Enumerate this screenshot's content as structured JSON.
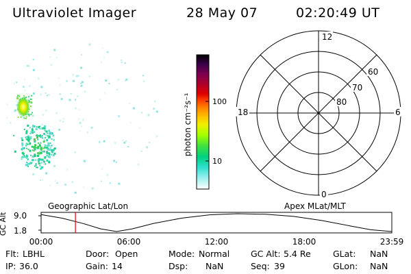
{
  "header": {
    "instrument": "Ultraviolet Imager",
    "date": "28 May 07",
    "time": "02:20:49 UT"
  },
  "colorbar": {
    "unit_label": "photon cm⁻²s⁻¹",
    "ticks": [
      "100",
      "10"
    ],
    "scale": "log",
    "colors": [
      "#000000",
      "#3a0048",
      "#7a0050",
      "#b0002a",
      "#e00000",
      "#ff4000",
      "#ff8a00",
      "#ffc000",
      "#f0f000",
      "#a0ff00",
      "#40e040",
      "#00d080",
      "#30e0d0",
      "#a0f0f0",
      "#ffffff"
    ]
  },
  "polar_grid": {
    "mlt_labels": [
      "12",
      "18",
      "6",
      "0"
    ],
    "lat_labels": [
      "60",
      "70",
      "80"
    ]
  },
  "timeline": {
    "left_title": "Geographic Lat/Lon",
    "right_title": "Apex MLat/MLT",
    "axis_label": "GC Alt",
    "y_ticks": [
      "9.0",
      "1.8"
    ],
    "x_ticks": [
      "00:00",
      "06:00",
      "12:00",
      "18:00",
      "23:59"
    ],
    "marker_time_hours": 2.35,
    "marker_color": "#e00000"
  },
  "status": {
    "row1": [
      {
        "label": "Flt:",
        "value": "LBHL"
      },
      {
        "label": "Door:",
        "value": "Open"
      },
      {
        "label": "Mode:",
        "value": "Normal"
      },
      {
        "label": "GC Alt:",
        "value": "5.4 Re"
      },
      {
        "label": "GLat:",
        "value": "NaN"
      }
    ],
    "row2": [
      {
        "label": "IP:",
        "value": "36.0"
      },
      {
        "label": "Gain:",
        "value": "14"
      },
      {
        "label": "Dsp:",
        "value": "NaN"
      },
      {
        "label": "Seq:",
        "value": "39"
      },
      {
        "label": "GLon:",
        "value": "NaN"
      }
    ]
  }
}
